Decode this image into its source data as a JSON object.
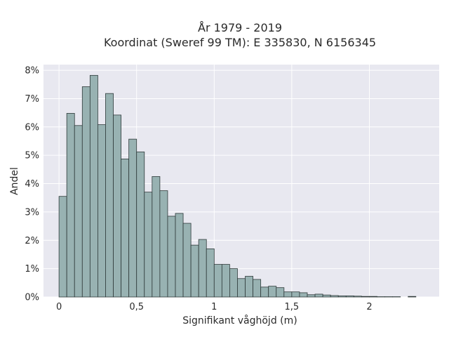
{
  "chart_data": {
    "type": "bar",
    "title": "År 1979 - 2019",
    "subtitle": "Koordinat (Sweref 99 TM): E 335830, N 6156345",
    "xlabel": "Signifikant våghöjd (m)",
    "ylabel": "Andel",
    "xlim": [
      -0.1,
      2.45
    ],
    "ylim": [
      0,
      8.2
    ],
    "x_ticks": [
      {
        "value": 0,
        "label": "0"
      },
      {
        "value": 0.5,
        "label": "0,5"
      },
      {
        "value": 1,
        "label": "1"
      },
      {
        "value": 1.5,
        "label": "1,5"
      },
      {
        "value": 2,
        "label": "2"
      }
    ],
    "y_ticks": [
      {
        "value": 0,
        "label": "0%"
      },
      {
        "value": 1,
        "label": "1%"
      },
      {
        "value": 2,
        "label": "2%"
      },
      {
        "value": 3,
        "label": "3%"
      },
      {
        "value": 4,
        "label": "4%"
      },
      {
        "value": 5,
        "label": "5%"
      },
      {
        "value": 6,
        "label": "6%"
      },
      {
        "value": 7,
        "label": "7%"
      },
      {
        "value": 8,
        "label": "8%"
      }
    ],
    "bin_width": 0.05,
    "bin_starts": [
      0.0,
      0.05,
      0.1,
      0.15,
      0.2,
      0.25,
      0.3,
      0.35,
      0.4,
      0.45,
      0.5,
      0.55,
      0.6,
      0.65,
      0.7,
      0.75,
      0.8,
      0.85,
      0.9,
      0.95,
      1.0,
      1.05,
      1.1,
      1.15,
      1.2,
      1.25,
      1.3,
      1.35,
      1.4,
      1.45,
      1.5,
      1.55,
      1.6,
      1.65,
      1.7,
      1.75,
      1.8,
      1.85,
      1.9,
      1.95,
      2.0,
      2.05,
      2.1,
      2.15,
      2.2,
      2.25
    ],
    "values": [
      3.55,
      6.48,
      6.05,
      7.42,
      7.82,
      6.08,
      7.18,
      6.42,
      4.87,
      5.57,
      5.12,
      3.7,
      4.25,
      3.75,
      2.85,
      2.95,
      2.6,
      1.83,
      2.03,
      1.7,
      1.15,
      1.15,
      1.0,
      0.65,
      0.73,
      0.62,
      0.35,
      0.38,
      0.33,
      0.18,
      0.18,
      0.15,
      0.08,
      0.1,
      0.07,
      0.05,
      0.04,
      0.04,
      0.03,
      0.02,
      0.02,
      0.01,
      0.01,
      0.01,
      0.0,
      0.02
    ],
    "colors": {
      "bar_fill": "#98b2b2",
      "bar_stroke": "#2f3a3a",
      "plot_bg": "#e8e8f0",
      "grid": "#ffffff"
    },
    "grid": true
  }
}
